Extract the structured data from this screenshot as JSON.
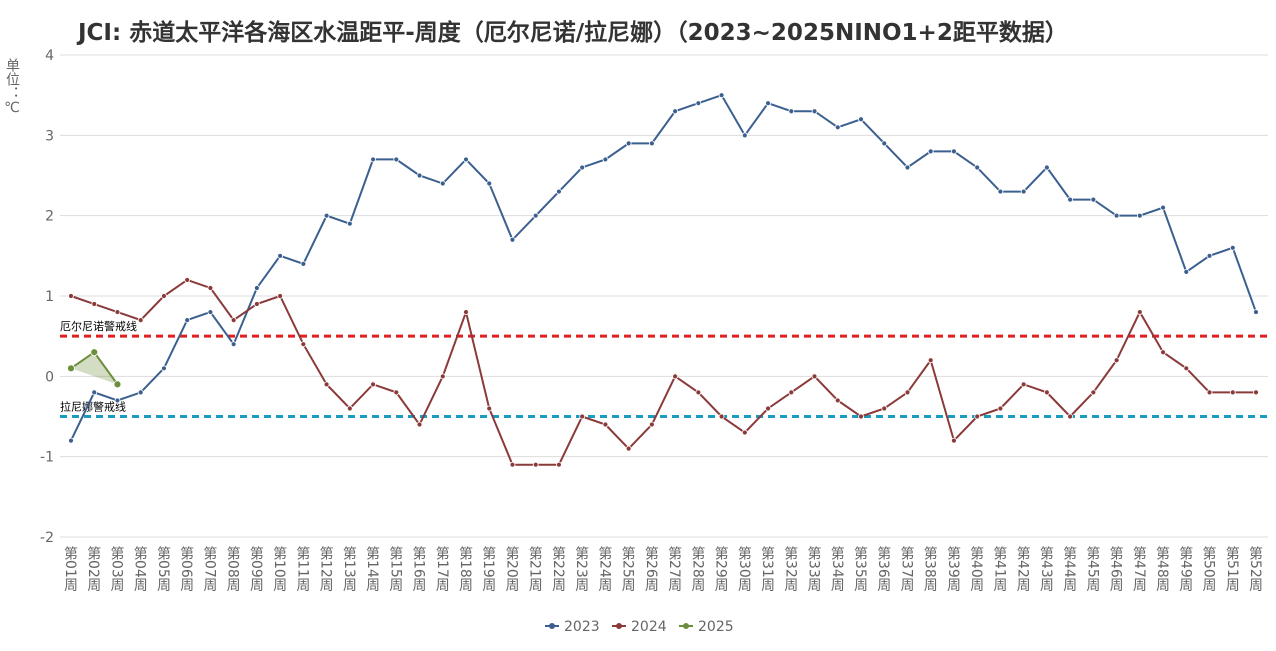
{
  "chart_data": {
    "type": "line",
    "title": "JCI: 赤道太平洋各海区水温距平-周度（厄尔尼诺/拉尼娜）（2023~2025NINO1+2距平数据）",
    "y_label": "单位：℃",
    "categories": [
      "第01周",
      "第02周",
      "第03周",
      "第04周",
      "第05周",
      "第06周",
      "第07周",
      "第08周",
      "第09周",
      "第10周",
      "第11周",
      "第12周",
      "第13周",
      "第14周",
      "第15周",
      "第16周",
      "第17周",
      "第18周",
      "第19周",
      "第20周",
      "第21周",
      "第22周",
      "第23周",
      "第24周",
      "第25周",
      "第26周",
      "第27周",
      "第28周",
      "第29周",
      "第30周",
      "第31周",
      "第32周",
      "第33周",
      "第34周",
      "第35周",
      "第36周",
      "第37周",
      "第38周",
      "第39周",
      "第40周",
      "第41周",
      "第42周",
      "第43周",
      "第44周",
      "第45周",
      "第46周",
      "第47周",
      "第48周",
      "第49周",
      "第50周",
      "第51周",
      "第52周"
    ],
    "series": [
      {
        "name": "2023",
        "color": "#3b5f8f",
        "values": [
          -0.8,
          -0.2,
          -0.3,
          -0.2,
          0.1,
          0.7,
          0.8,
          0.4,
          1.1,
          1.5,
          1.4,
          2.0,
          1.9,
          2.7,
          2.7,
          2.5,
          2.4,
          2.7,
          2.4,
          1.7,
          2.0,
          2.3,
          2.6,
          2.7,
          2.9,
          2.9,
          3.3,
          3.4,
          3.5,
          3.0,
          3.4,
          3.3,
          3.3,
          3.1,
          3.2,
          2.9,
          2.6,
          2.8,
          2.8,
          2.6,
          2.3,
          2.3,
          2.6,
          2.2,
          2.2,
          2.0,
          2.0,
          2.1,
          1.3,
          1.5,
          1.6,
          0.8
        ]
      },
      {
        "name": "2024",
        "color": "#8b3a3a",
        "values": [
          1.0,
          0.9,
          0.8,
          0.7,
          1.0,
          1.2,
          1.1,
          0.7,
          0.9,
          1.0,
          0.4,
          -0.1,
          -0.4,
          -0.1,
          -0.2,
          -0.6,
          0.0,
          0.8,
          -0.4,
          -1.1,
          -1.1,
          -1.1,
          -0.5,
          -0.6,
          -0.9,
          -0.6,
          0.0,
          -0.2,
          -0.5,
          -0.7,
          -0.4,
          -0.2,
          0.0,
          -0.3,
          -0.5,
          -0.4,
          -0.2,
          0.2,
          -0.8,
          -0.5,
          -0.4,
          -0.1,
          -0.2,
          -0.5,
          -0.2,
          0.2,
          0.8,
          0.3,
          0.1,
          -0.2,
          -0.2,
          -0.2
        ]
      },
      {
        "name": "2025",
        "color": "#6b8e3a",
        "values": [
          0.1,
          0.3,
          -0.1,
          null,
          null,
          null,
          null,
          null,
          null,
          null,
          null,
          null,
          null,
          null,
          null,
          null,
          null,
          null,
          null,
          null,
          null,
          null,
          null,
          null,
          null,
          null,
          null,
          null,
          null,
          null,
          null,
          null,
          null,
          null,
          null,
          null,
          null,
          null,
          null,
          null,
          null,
          null,
          null,
          null,
          null,
          null,
          null,
          null,
          null,
          null,
          null,
          null
        ]
      }
    ],
    "reference_lines": [
      {
        "value": 0.5,
        "label": "厄尔尼诺警戒线",
        "color": "#e02020"
      },
      {
        "value": -0.5,
        "label": "拉尼娜警戒线",
        "color": "#1a9bc0"
      }
    ],
    "ylim": [
      -2,
      4
    ],
    "yticks": [
      -2,
      -1,
      0,
      1,
      2,
      3,
      4
    ],
    "grid": true,
    "legend": "bottom"
  }
}
